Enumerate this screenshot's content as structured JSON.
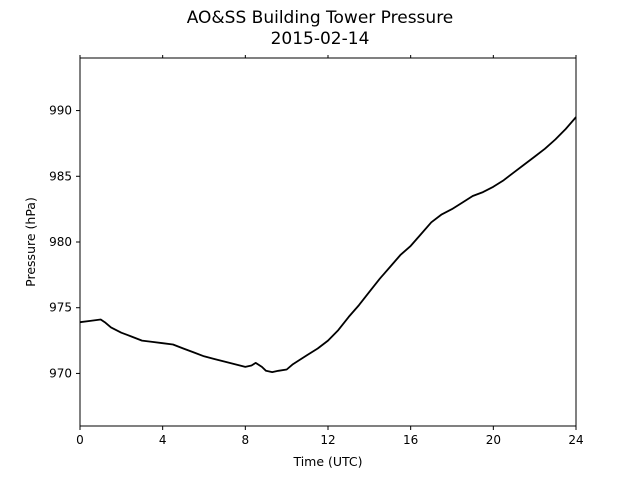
{
  "chart_data": {
    "type": "line",
    "title": "AO&SS Building Tower Pressure",
    "subtitle": "2015-02-14",
    "xlabel": "Time (UTC)",
    "ylabel": "Pressure (hPa)",
    "xlim": [
      0,
      24
    ],
    "ylim": [
      966,
      994
    ],
    "xticks": [
      0,
      4,
      8,
      12,
      16,
      20,
      24
    ],
    "yticks": [
      970,
      975,
      980,
      985,
      990
    ],
    "grid": false,
    "line_color": "#000000",
    "series": [
      {
        "x": [
          0,
          0.5,
          1.0,
          1.2,
          1.5,
          2.0,
          2.5,
          3.0,
          3.5,
          4.0,
          4.5,
          5.0,
          5.5,
          6.0,
          6.5,
          7.0,
          7.5,
          8.0,
          8.3,
          8.5,
          8.8,
          9.0,
          9.3,
          9.6,
          10.0,
          10.3,
          10.6,
          11.0,
          11.5,
          12.0,
          12.5,
          13.0,
          13.5,
          14.0,
          14.5,
          15.0,
          15.5,
          16.0,
          16.5,
          17.0,
          17.5,
          18.0,
          18.5,
          19.0,
          19.5,
          20.0,
          20.5,
          21.0,
          21.5,
          22.0,
          22.5,
          23.0,
          23.5,
          24.0
        ],
        "y": [
          973.9,
          974.0,
          974.1,
          973.9,
          973.5,
          973.1,
          972.8,
          972.5,
          972.4,
          972.3,
          972.2,
          971.9,
          971.6,
          971.3,
          971.1,
          970.9,
          970.7,
          970.5,
          970.6,
          970.8,
          970.5,
          970.2,
          970.1,
          970.2,
          970.3,
          970.7,
          971.0,
          971.4,
          971.9,
          972.5,
          973.3,
          974.3,
          975.2,
          976.2,
          977.2,
          978.1,
          979.0,
          979.7,
          980.6,
          981.5,
          982.1,
          982.5,
          983.0,
          983.5,
          983.8,
          984.2,
          984.7,
          985.3,
          985.9,
          986.5,
          987.1,
          987.8,
          988.6,
          989.5
        ]
      }
    ]
  }
}
